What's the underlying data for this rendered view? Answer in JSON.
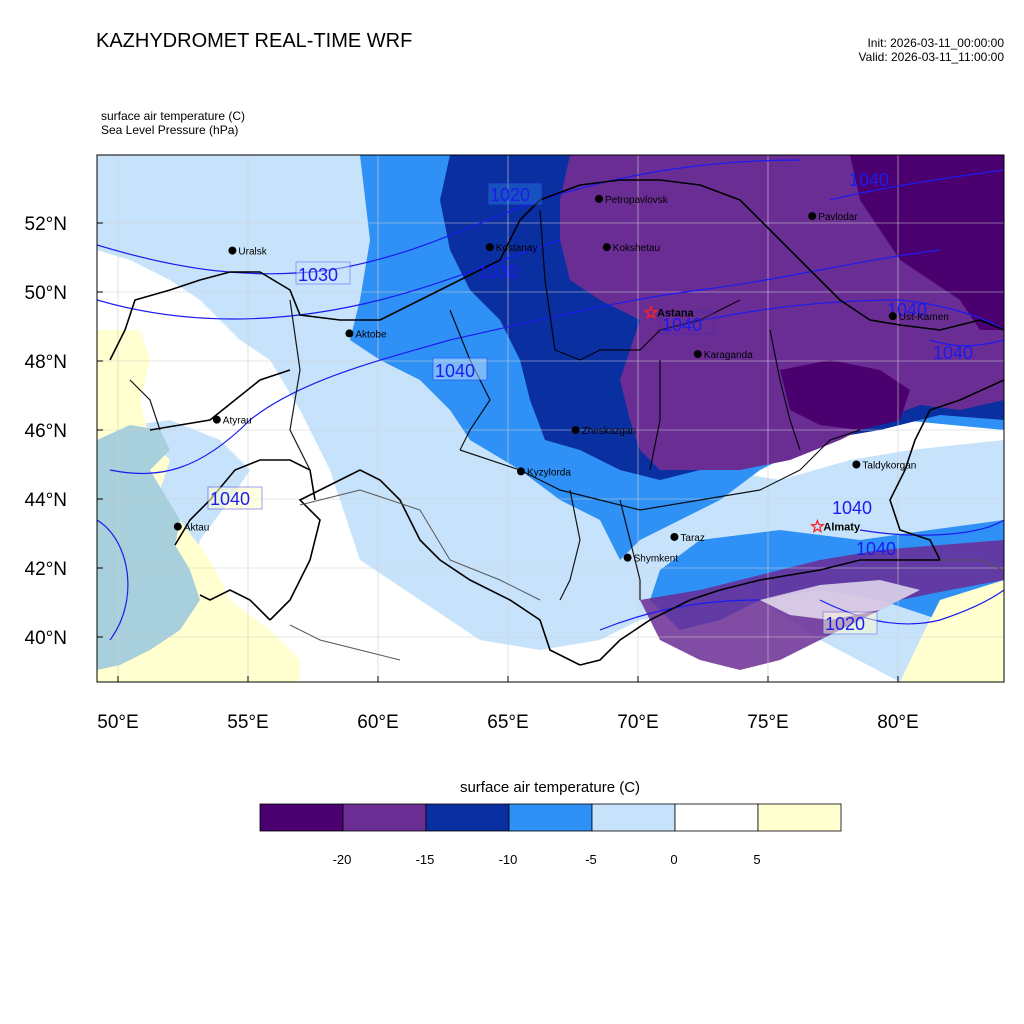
{
  "title": "KAZHYDROMET REAL-TIME WRF",
  "init_time": "Init: 2026-03-11_00:00:00",
  "valid_time": "Valid: 2026-03-11_11:00:00",
  "variables": [
    "surface air temperature   (C)",
    "Sea Level Pressure   (hPa)"
  ],
  "lat_labels": [
    "52°N",
    "50°N",
    "48°N",
    "46°N",
    "44°N",
    "42°N",
    "40°N"
  ],
  "lon_labels": [
    "50°E",
    "55°E",
    "60°E",
    "65°E",
    "70°E",
    "75°E",
    "80°E"
  ],
  "cities": [
    {
      "name": "Petropavlovsk",
      "marker": "dot",
      "lon": 68.5,
      "lat": 52.7
    },
    {
      "name": "Kostanay",
      "marker": "dot",
      "lon": 64.3,
      "lat": 51.3
    },
    {
      "name": "Kokshetau",
      "marker": "dot",
      "lon": 68.8,
      "lat": 51.3
    },
    {
      "name": "Uralsk",
      "marker": "dot",
      "lon": 54.4,
      "lat": 51.2
    },
    {
      "name": "Pavlodar",
      "marker": "dot",
      "lon": 76.7,
      "lat": 52.2
    },
    {
      "name": "Aktobe",
      "marker": "dot",
      "lon": 58.9,
      "lat": 48.8
    },
    {
      "name": "Astana",
      "marker": "star",
      "lon": 70.5,
      "lat": 49.4
    },
    {
      "name": "Ust-Kamen",
      "marker": "dot",
      "lon": 79.8,
      "lat": 49.3
    },
    {
      "name": "Karaganda",
      "marker": "dot",
      "lon": 72.3,
      "lat": 48.2
    },
    {
      "name": "Atyrau",
      "marker": "dot",
      "lon": 53.8,
      "lat": 46.3
    },
    {
      "name": "Zheskazgan",
      "marker": "dot",
      "lon": 67.6,
      "lat": 46.0
    },
    {
      "name": "Taldykorgan",
      "marker": "dot",
      "lon": 78.4,
      "lat": 45.0
    },
    {
      "name": "Kyzylorda",
      "marker": "dot",
      "lon": 65.5,
      "lat": 44.8
    },
    {
      "name": "Aktau",
      "marker": "dot",
      "lon": 52.3,
      "lat": 43.2
    },
    {
      "name": "Almaty",
      "marker": "star",
      "lon": 76.9,
      "lat": 43.2
    },
    {
      "name": "Taraz",
      "marker": "dot",
      "lon": 71.4,
      "lat": 42.9
    },
    {
      "name": "Shymkent",
      "marker": "dot",
      "lon": 69.6,
      "lat": 42.3
    }
  ],
  "isobar_labels": [
    {
      "text": "1020"
    },
    {
      "text": "1030"
    },
    {
      "text": "1030"
    },
    {
      "text": "1040"
    },
    {
      "text": "1040"
    },
    {
      "text": "1040"
    },
    {
      "text": "1040"
    },
    {
      "text": "1040"
    },
    {
      "text": "1040"
    },
    {
      "text": "1040"
    },
    {
      "text": "1040"
    },
    {
      "text": "1020"
    }
  ],
  "colorbar": {
    "title": "surface air temperature (C)",
    "colors": [
      "#4b0070",
      "#6a2d94",
      "#0a2fa0",
      "#2f90f5",
      "#c7e3fb",
      "#ffffff",
      "#ffffd0"
    ],
    "labels": [
      "-20",
      "-15",
      "-10",
      "-5",
      "0",
      "5"
    ]
  },
  "colors": {
    "isobar": "#1b1bf0",
    "border": "#000000",
    "city_star": "#ff2020",
    "caspian": "#a8cfdc"
  }
}
